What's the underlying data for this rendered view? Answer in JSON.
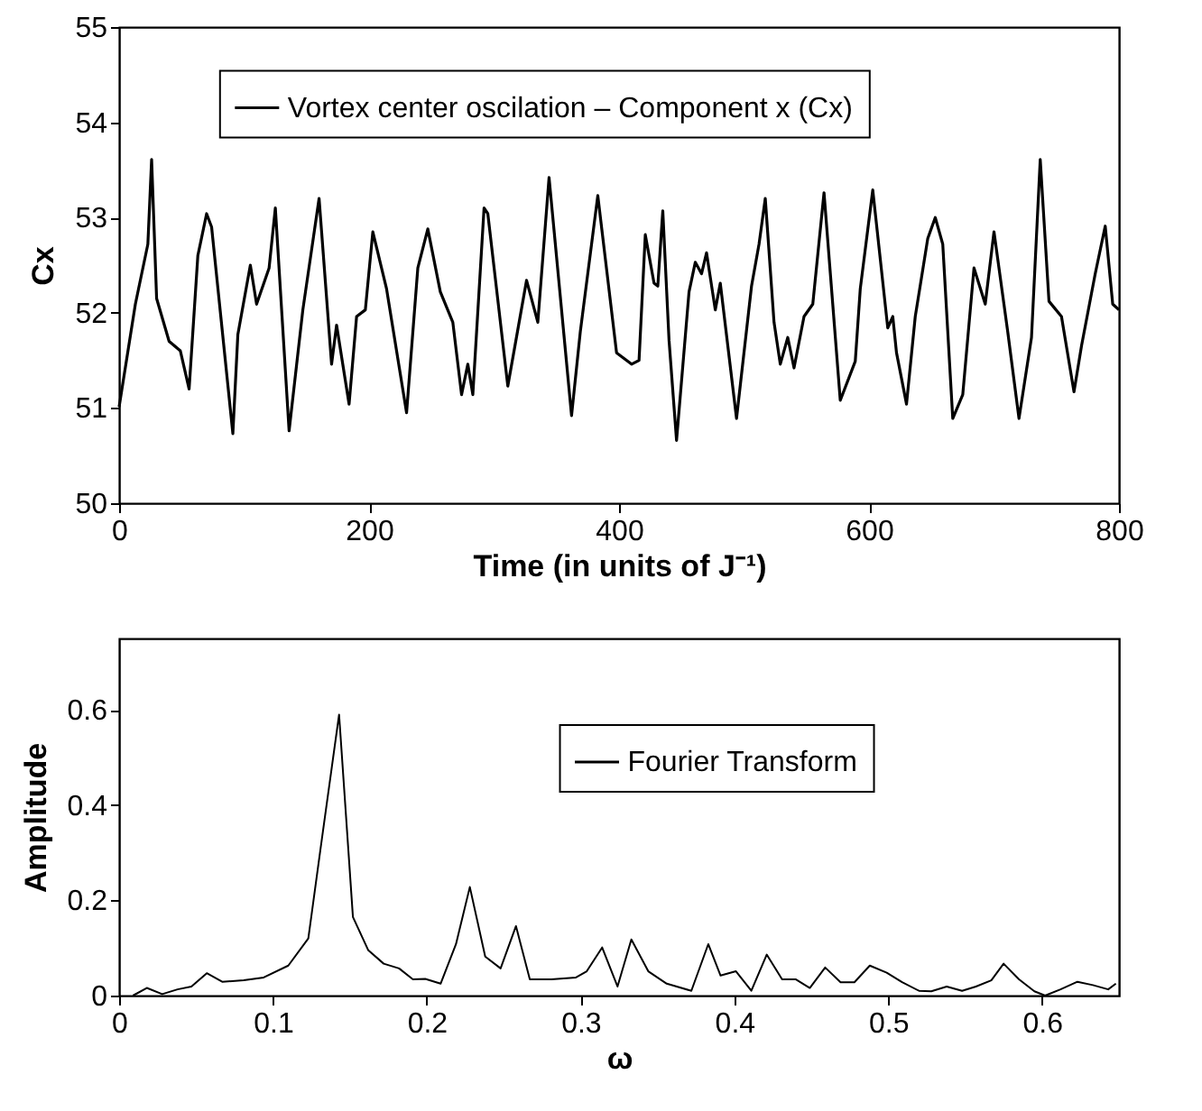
{
  "chart_data": [
    {
      "type": "line",
      "xlabel": "Time (in units of J⁻¹)",
      "ylabel": "Cx",
      "xlim": [
        0,
        800
      ],
      "xticks": [
        0,
        200,
        400,
        600,
        800
      ],
      "ylim": [
        50,
        55
      ],
      "yticks": [
        50,
        51,
        52,
        53,
        54,
        55
      ],
      "legend": "top",
      "x": [
        0,
        13,
        23,
        26,
        30,
        40,
        49,
        56,
        63,
        70,
        74,
        91,
        95,
        105,
        110,
        120,
        125,
        136,
        147,
        160,
        170,
        174,
        184,
        190,
        197,
        203,
        214,
        230,
        239,
        247,
        257,
        267,
        274,
        279,
        283,
        292,
        295,
        311,
        326,
        335,
        344,
        362,
        369,
        383,
        398,
        410,
        416,
        421,
        428,
        431,
        435,
        440,
        446,
        456,
        461,
        466,
        470,
        477,
        481,
        494,
        506,
        512,
        517,
        524,
        529,
        535,
        540,
        548,
        555,
        564,
        577,
        589,
        593,
        603,
        615,
        619,
        622,
        630,
        637,
        647,
        653,
        659,
        667,
        675,
        684,
        693,
        700,
        711,
        720,
        730,
        737,
        744,
        754,
        764,
        770,
        781,
        789,
        795,
        800
      ],
      "series": [
        {
          "name": "Vortex center oscilation – Component x (Cx)",
          "color": "#000000",
          "values": [
            51.01,
            52.09,
            52.72,
            53.61,
            52.15,
            51.7,
            51.6,
            51.2,
            52.6,
            53.04,
            52.9,
            50.73,
            51.77,
            52.5,
            52.09,
            52.47,
            53.1,
            50.76,
            52.03,
            53.2,
            51.46,
            51.87,
            51.04,
            51.96,
            52.03,
            52.85,
            52.25,
            50.95,
            52.47,
            52.88,
            52.22,
            51.9,
            51.14,
            51.46,
            51.14,
            53.1,
            53.04,
            51.23,
            52.34,
            51.9,
            53.42,
            50.92,
            51.8,
            53.23,
            51.58,
            51.46,
            51.5,
            52.82,
            52.31,
            52.28,
            53.07,
            51.71,
            50.66,
            52.22,
            52.53,
            52.41,
            52.63,
            52.03,
            52.31,
            50.89,
            52.28,
            52.72,
            53.2,
            51.9,
            51.46,
            51.74,
            51.42,
            51.96,
            52.09,
            53.26,
            51.08,
            51.49,
            52.25,
            53.29,
            51.84,
            51.96,
            51.58,
            51.04,
            51.96,
            52.78,
            53.0,
            52.72,
            50.89,
            51.14,
            52.47,
            52.09,
            52.85,
            51.8,
            50.89,
            51.74,
            53.61,
            52.12,
            51.96,
            51.17,
            51.65,
            52.41,
            52.91,
            52.09,
            52.03
          ]
        }
      ]
    },
    {
      "type": "line",
      "xlabel": "ω",
      "ylabel": "Amplitude",
      "xlim": [
        0,
        0.65
      ],
      "xticks": [
        0,
        0.1,
        0.2,
        0.3,
        0.4,
        0.5,
        0.6
      ],
      "ylim": [
        0,
        0.75
      ],
      "yticks": [
        0,
        0.2,
        0.4,
        0.6
      ],
      "legend": "top right",
      "x": [
        0.009,
        0.018,
        0.028,
        0.038,
        0.047,
        0.057,
        0.067,
        0.081,
        0.094,
        0.11,
        0.123,
        0.131,
        0.143,
        0.152,
        0.162,
        0.172,
        0.182,
        0.191,
        0.199,
        0.209,
        0.219,
        0.228,
        0.238,
        0.248,
        0.258,
        0.267,
        0.281,
        0.297,
        0.304,
        0.314,
        0.324,
        0.333,
        0.344,
        0.356,
        0.372,
        0.383,
        0.391,
        0.401,
        0.411,
        0.421,
        0.431,
        0.44,
        0.449,
        0.459,
        0.469,
        0.478,
        0.488,
        0.499,
        0.509,
        0.52,
        0.528,
        0.538,
        0.548,
        0.557,
        0.567,
        0.575,
        0.585,
        0.595,
        0.602,
        0.612,
        0.623,
        0.633,
        0.643,
        0.648
      ],
      "series": [
        {
          "name": "Fourier Transform",
          "color": "#000000",
          "values": [
            0,
            0.016,
            0.003,
            0.013,
            0.019,
            0.047,
            0.029,
            0.032,
            0.038,
            0.063,
            0.12,
            0.31,
            0.59,
            0.165,
            0.095,
            0.067,
            0.057,
            0.034,
            0.035,
            0.025,
            0.108,
            0.228,
            0.082,
            0.057,
            0.146,
            0.034,
            0.034,
            0.038,
            0.051,
            0.101,
            0.019,
            0.118,
            0.051,
            0.025,
            0.01,
            0.108,
            0.042,
            0.051,
            0.01,
            0.086,
            0.034,
            0.034,
            0.016,
            0.059,
            0.028,
            0.028,
            0.063,
            0.048,
            0.028,
            0.01,
            0.009,
            0.019,
            0.01,
            0.019,
            0.032,
            0.067,
            0.034,
            0.009,
            0,
            0.013,
            0.029,
            0.022,
            0.013,
            0.025
          ]
        }
      ]
    }
  ]
}
